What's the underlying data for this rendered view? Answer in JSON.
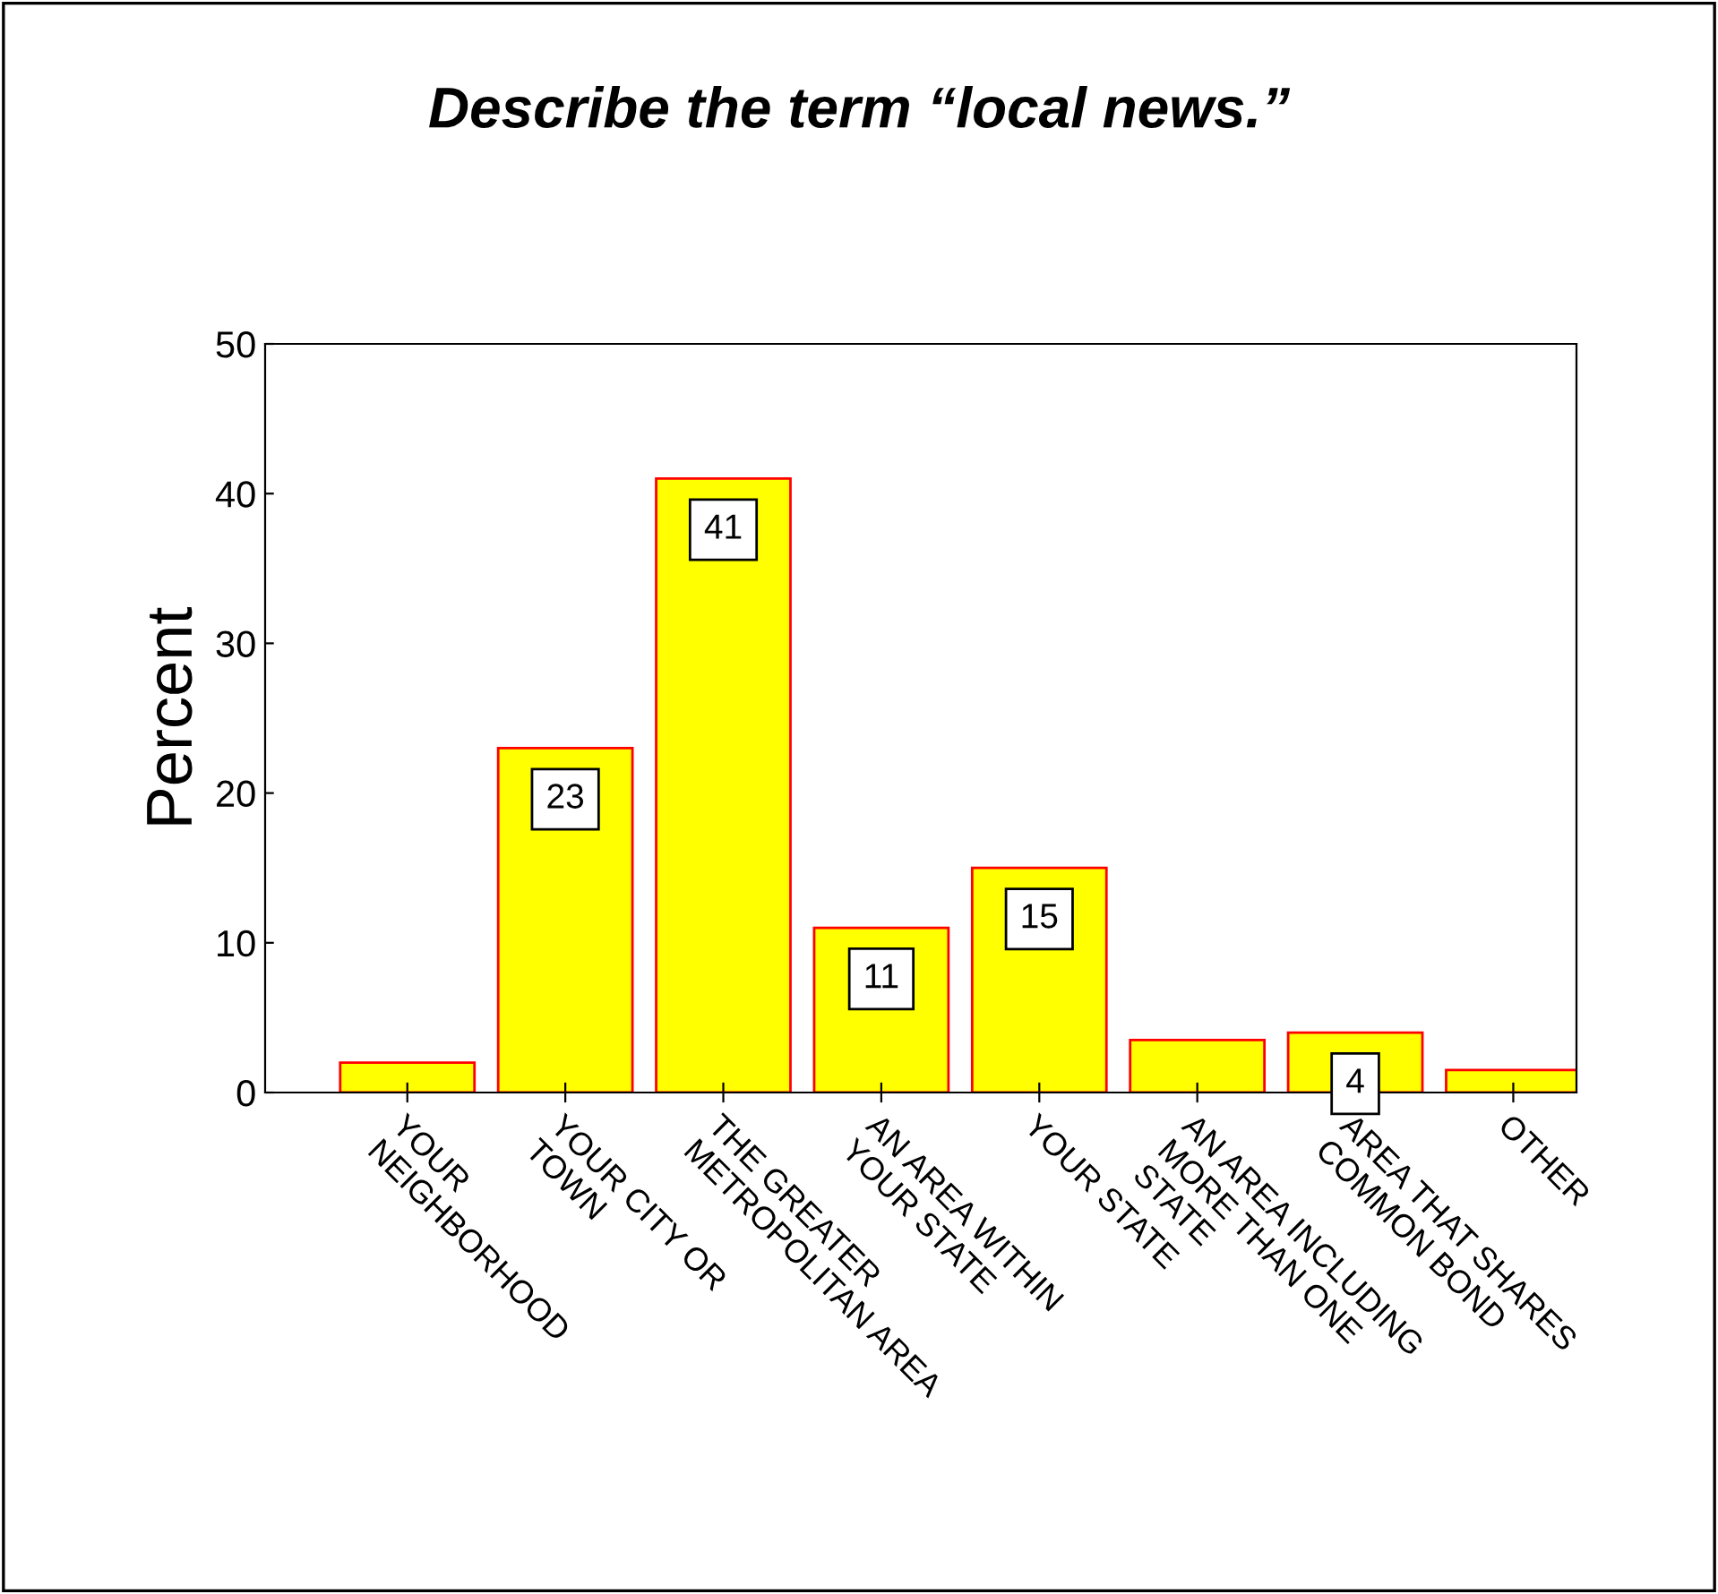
{
  "chart_data": {
    "type": "bar",
    "title": "Describe the term “local news.”",
    "ylabel": "Percent",
    "categories": [
      "YOUR\nNEIGHBORHOOD",
      "YOUR CITY OR\nTOWN",
      "THE GREATER\nMETROPOLITAN AREA",
      "AN AREA WITHIN\nYOUR STATE",
      "YOUR STATE",
      "AN AREA INCLUDING\nMORE THAN ONE\nSTATE",
      "AREA THAT SHARES\nCOMMON BOND",
      "OTHER"
    ],
    "values": [
      2,
      23,
      41,
      11,
      15,
      3.5,
      4,
      1.5
    ],
    "value_labels": [
      null,
      "23",
      "41",
      "11",
      "15",
      null,
      "4",
      null
    ],
    "color": "#ffff00",
    "ylim": [
      0,
      50
    ],
    "yticks": [
      0,
      10,
      20,
      30,
      40,
      50
    ],
    "grid": false,
    "legend": false
  }
}
